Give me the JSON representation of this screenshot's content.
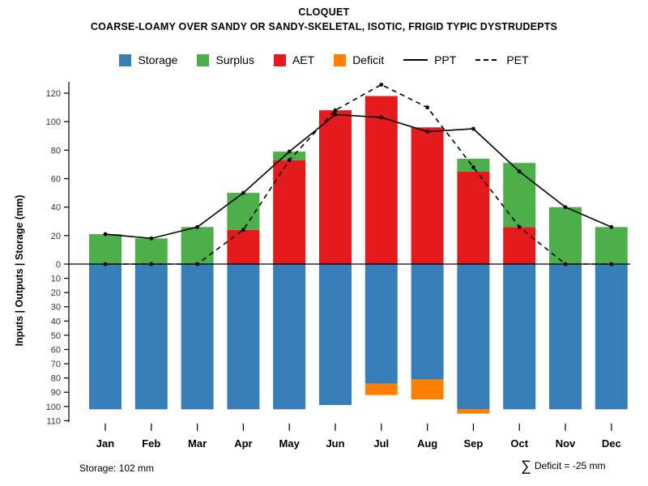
{
  "header": {
    "title": "CLOQUET",
    "subtitle": "COARSE-LOAMY OVER SANDY OR SANDY-SKELETAL, ISOTIC, FRIGID TYPIC DYSTRUDEPTS"
  },
  "legend": [
    {
      "label": "Storage",
      "type": "box",
      "color": "#377EB8"
    },
    {
      "label": "Surplus",
      "type": "box",
      "color": "#4DAF4A"
    },
    {
      "label": "AET",
      "type": "box",
      "color": "#E41A1C"
    },
    {
      "label": "Deficit",
      "type": "box",
      "color": "#FF7F00"
    },
    {
      "label": "PPT",
      "type": "line-solid",
      "color": "#000000"
    },
    {
      "label": "PET",
      "type": "line-dashed",
      "color": "#000000"
    }
  ],
  "footer": {
    "storage_note": "Storage: 102 mm",
    "sigma": "∑",
    "deficit_note": "Deficit = -25 mm"
  },
  "chart_data": {
    "type": "bar",
    "title": "CLOQUET",
    "subtitle": "COARSE-LOAMY OVER SANDY OR SANDY-SKELETAL, ISOTIC, FRIGID TYPIC DYSTRUDEPTS",
    "xlabel": "",
    "ylabel": "Inputs | Outputs | Storage    (mm)",
    "categories": [
      "Jan",
      "Feb",
      "Mar",
      "Apr",
      "May",
      "Jun",
      "Jul",
      "Aug",
      "Sep",
      "Oct",
      "Nov",
      "Dec"
    ],
    "ylim_upper": 130,
    "ylim_lower": -110,
    "grid": "off",
    "legend_position": "top",
    "upper_ticks": [
      0,
      20,
      40,
      60,
      80,
      100,
      120
    ],
    "lower_ticks": [
      10,
      20,
      30,
      40,
      50,
      60,
      70,
      80,
      90,
      100,
      110
    ],
    "bars": {
      "aet": {
        "label": "AET",
        "color": "#E41A1C",
        "direction": "up",
        "values": [
          0,
          0,
          0,
          24,
          73,
          108,
          118,
          96,
          65,
          26,
          0,
          0
        ]
      },
      "surplus": {
        "label": "Surplus",
        "color": "#4DAF4A",
        "direction": "up-stacked",
        "values": [
          21,
          18,
          26,
          26,
          6,
          0,
          0,
          0,
          9,
          45,
          40,
          26
        ]
      },
      "storage": {
        "label": "Storage",
        "color": "#377EB8",
        "direction": "down",
        "values": [
          102,
          102,
          102,
          102,
          102,
          99,
          84,
          81,
          102,
          102,
          102,
          102
        ]
      },
      "deficit": {
        "label": "Deficit",
        "color": "#FF7F00",
        "direction": "down-stacked",
        "values": [
          0,
          0,
          0,
          0,
          0,
          0,
          8,
          14,
          3,
          0,
          0,
          0
        ]
      }
    },
    "lines": {
      "ppt": {
        "label": "PPT",
        "style": "solid",
        "color": "#000000",
        "values": [
          21,
          18,
          26,
          50,
          79,
          105,
          103,
          93,
          95,
          65,
          40,
          26
        ]
      },
      "pet": {
        "label": "PET",
        "style": "dashed",
        "color": "#000000",
        "values": [
          0,
          0,
          0,
          24,
          73,
          108,
          126,
          110,
          68,
          26,
          0,
          0
        ]
      }
    },
    "annotations": {
      "storage_max_mm": 102,
      "total_deficit_mm": -25
    }
  }
}
